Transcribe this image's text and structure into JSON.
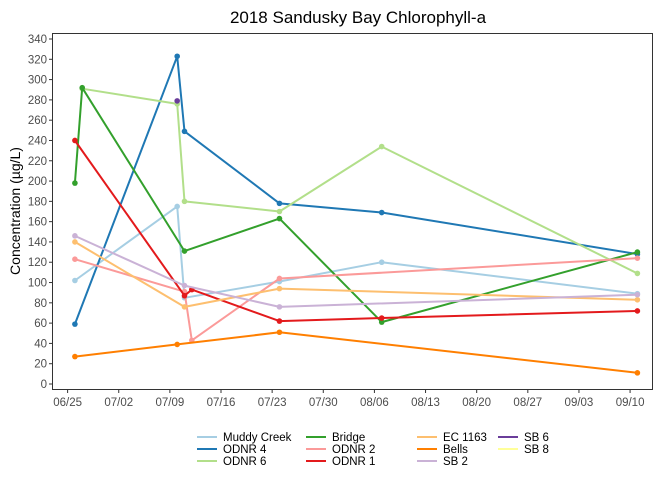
{
  "chart_data": {
    "type": "line",
    "title": "2018 Sandusky Bay Chlorophyll-a",
    "xlabel": "",
    "ylabel": "Concentration (µg/L)",
    "x_tick_labels": [
      "06/25",
      "07/02",
      "07/09",
      "07/16",
      "07/23",
      "07/30",
      "08/06",
      "08/13",
      "08/20",
      "08/27",
      "09/03",
      "09/10"
    ],
    "x_tick_dates": [
      "2018-06-25",
      "2018-07-02",
      "2018-07-09",
      "2018-07-16",
      "2018-07-23",
      "2018-07-30",
      "2018-08-06",
      "2018-08-13",
      "2018-08-20",
      "2018-08-27",
      "2018-09-03",
      "2018-09-10"
    ],
    "xlim": [
      "2018-06-23",
      "2018-09-13"
    ],
    "ylim": [
      0,
      340
    ],
    "y_ticks": [
      0,
      20,
      40,
      60,
      80,
      100,
      120,
      140,
      160,
      180,
      200,
      220,
      240,
      260,
      280,
      300,
      320,
      340
    ],
    "grid": false,
    "legend_position": "bottom",
    "series": [
      {
        "name": "Muddy Creek",
        "color": "#A6CEE3",
        "x": [
          "2018-06-26",
          "2018-07-10",
          "2018-07-11",
          "2018-07-24",
          "2018-08-07",
          "2018-09-11"
        ],
        "y": [
          102,
          175,
          85,
          101,
          120,
          89
        ]
      },
      {
        "name": "ODNR 4",
        "color": "#1F78B4",
        "x": [
          "2018-06-26",
          "2018-07-10",
          "2018-07-11",
          "2018-07-24",
          "2018-08-07",
          "2018-09-11"
        ],
        "y": [
          59,
          323,
          249,
          178,
          169,
          128
        ]
      },
      {
        "name": "ODNR 6",
        "color": "#B2DF8A",
        "x": [
          "2018-06-27",
          "2018-07-10",
          "2018-07-11",
          "2018-07-24",
          "2018-08-07",
          "2018-09-11"
        ],
        "y": [
          291,
          276,
          180,
          170,
          234,
          109
        ]
      },
      {
        "name": "Bridge",
        "color": "#33A02C",
        "x": [
          "2018-06-26",
          "2018-06-27",
          "2018-07-11",
          "2018-07-24",
          "2018-08-07",
          "2018-09-11"
        ],
        "y": [
          198,
          292,
          131,
          163,
          61,
          130
        ]
      },
      {
        "name": "ODNR 2",
        "color": "#FB9A99",
        "x": [
          "2018-06-26",
          "2018-07-11",
          "2018-07-12",
          "2018-07-24",
          "2018-09-11"
        ],
        "y": [
          123,
          91,
          43,
          104,
          124
        ]
      },
      {
        "name": "ODNR 1",
        "color": "#E31A1C",
        "x": [
          "2018-06-26",
          "2018-07-11",
          "2018-07-12",
          "2018-07-24",
          "2018-08-07",
          "2018-09-11"
        ],
        "y": [
          240,
          87,
          93,
          62,
          65,
          72
        ]
      },
      {
        "name": "EC 1163",
        "color": "#FDBF6F",
        "x": [
          "2018-06-26",
          "2018-07-11",
          "2018-07-24",
          "2018-09-11"
        ],
        "y": [
          140,
          76,
          94,
          83
        ]
      },
      {
        "name": "Bells",
        "color": "#FF7F00",
        "x": [
          "2018-06-26",
          "2018-07-10",
          "2018-07-24",
          "2018-09-11"
        ],
        "y": [
          27,
          39,
          51,
          11
        ]
      },
      {
        "name": "SB 2",
        "color": "#CAB2D6",
        "x": [
          "2018-06-26",
          "2018-07-11",
          "2018-07-24",
          "2018-09-11"
        ],
        "y": [
          146,
          97,
          76,
          88
        ]
      },
      {
        "name": "SB 6",
        "color": "#6A3D9A",
        "x": [
          "2018-07-10"
        ],
        "y": [
          279
        ]
      },
      {
        "name": "SB 8",
        "color": "#FFFF99",
        "x": [],
        "y": []
      }
    ],
    "legend_columns": [
      [
        "Muddy Creek",
        "ODNR 4",
        "ODNR 6"
      ],
      [
        "Bridge",
        "ODNR 2",
        "ODNR 1"
      ],
      [
        "EC 1163",
        "Bells",
        "SB 2"
      ],
      [
        "SB 6",
        "SB 8"
      ]
    ]
  }
}
